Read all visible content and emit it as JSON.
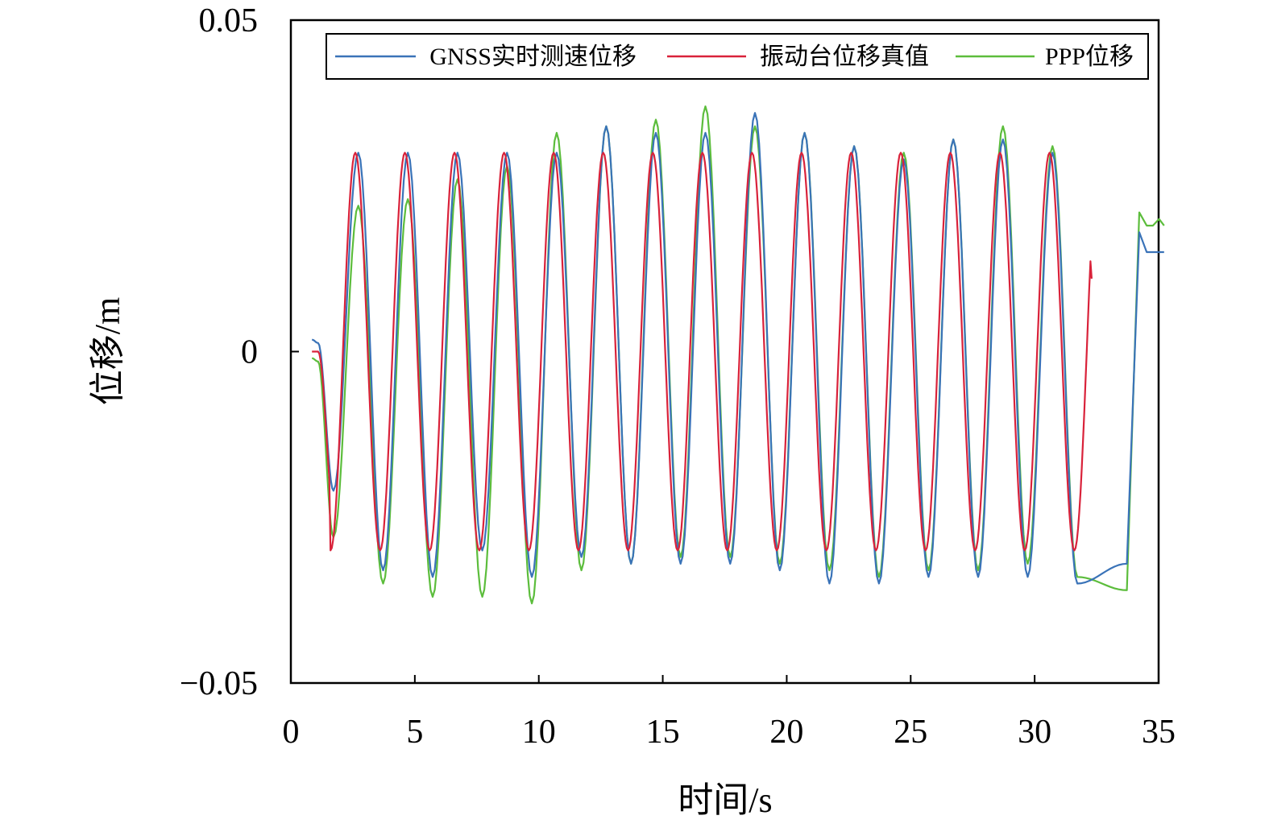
{
  "chart_data": {
    "type": "line",
    "title": "",
    "xlabel": "时间/s",
    "ylabel": "位移/m",
    "xlim": [
      0,
      35
    ],
    "ylim": [
      -0.05,
      0.05
    ],
    "xticks": [
      0,
      5,
      10,
      15,
      20,
      25,
      30,
      35
    ],
    "xtick_labels": [
      "0",
      "5",
      "10",
      "15",
      "20",
      "25",
      "30",
      "35"
    ],
    "yticks": [
      -0.05,
      0,
      0.05
    ],
    "ytick_labels": [
      "−0.05",
      "0",
      "0.05"
    ],
    "grid": false,
    "legend_position": "top",
    "series": [
      {
        "name": "GNSS实时测速位移",
        "color": "#3a73b8",
        "peaks": [
          0.03,
          0.03,
          0.03,
          0.03,
          0.03,
          0.034,
          0.033,
          0.033,
          0.036,
          0.033,
          0.031,
          0.029,
          0.032,
          0.032,
          0.03
        ],
        "troughs": [
          -0.021,
          -0.033,
          -0.034,
          -0.03,
          -0.034,
          -0.031,
          -0.032,
          -0.032,
          -0.032,
          -0.033,
          -0.035,
          -0.035,
          -0.034,
          -0.034,
          -0.034,
          -0.035,
          -0.032
        ],
        "tail": [
          0.018,
          0.015,
          0.015
        ]
      },
      {
        "name": "振动台位移真值",
        "color": "#d9223a",
        "amplitude": 0.03,
        "start": [
          0,
          0
        ],
        "last_point": [
          32.3,
          0.011
        ]
      },
      {
        "name": "PPP位移",
        "color": "#5cbd3c",
        "peaks": [
          0.022,
          0.023,
          0.026,
          0.028,
          0.033,
          0.034,
          0.035,
          0.037,
          0.034,
          0.033,
          0.031,
          0.03,
          0.032,
          0.034,
          0.031
        ],
        "troughs": [
          -0.028,
          -0.035,
          -0.037,
          -0.037,
          -0.038,
          -0.033,
          -0.032,
          -0.031,
          -0.031,
          -0.032,
          -0.033,
          -0.034,
          -0.033,
          -0.033,
          -0.032,
          -0.034,
          -0.036
        ],
        "tail": [
          0.021,
          0.019,
          0.02
        ]
      }
    ]
  }
}
